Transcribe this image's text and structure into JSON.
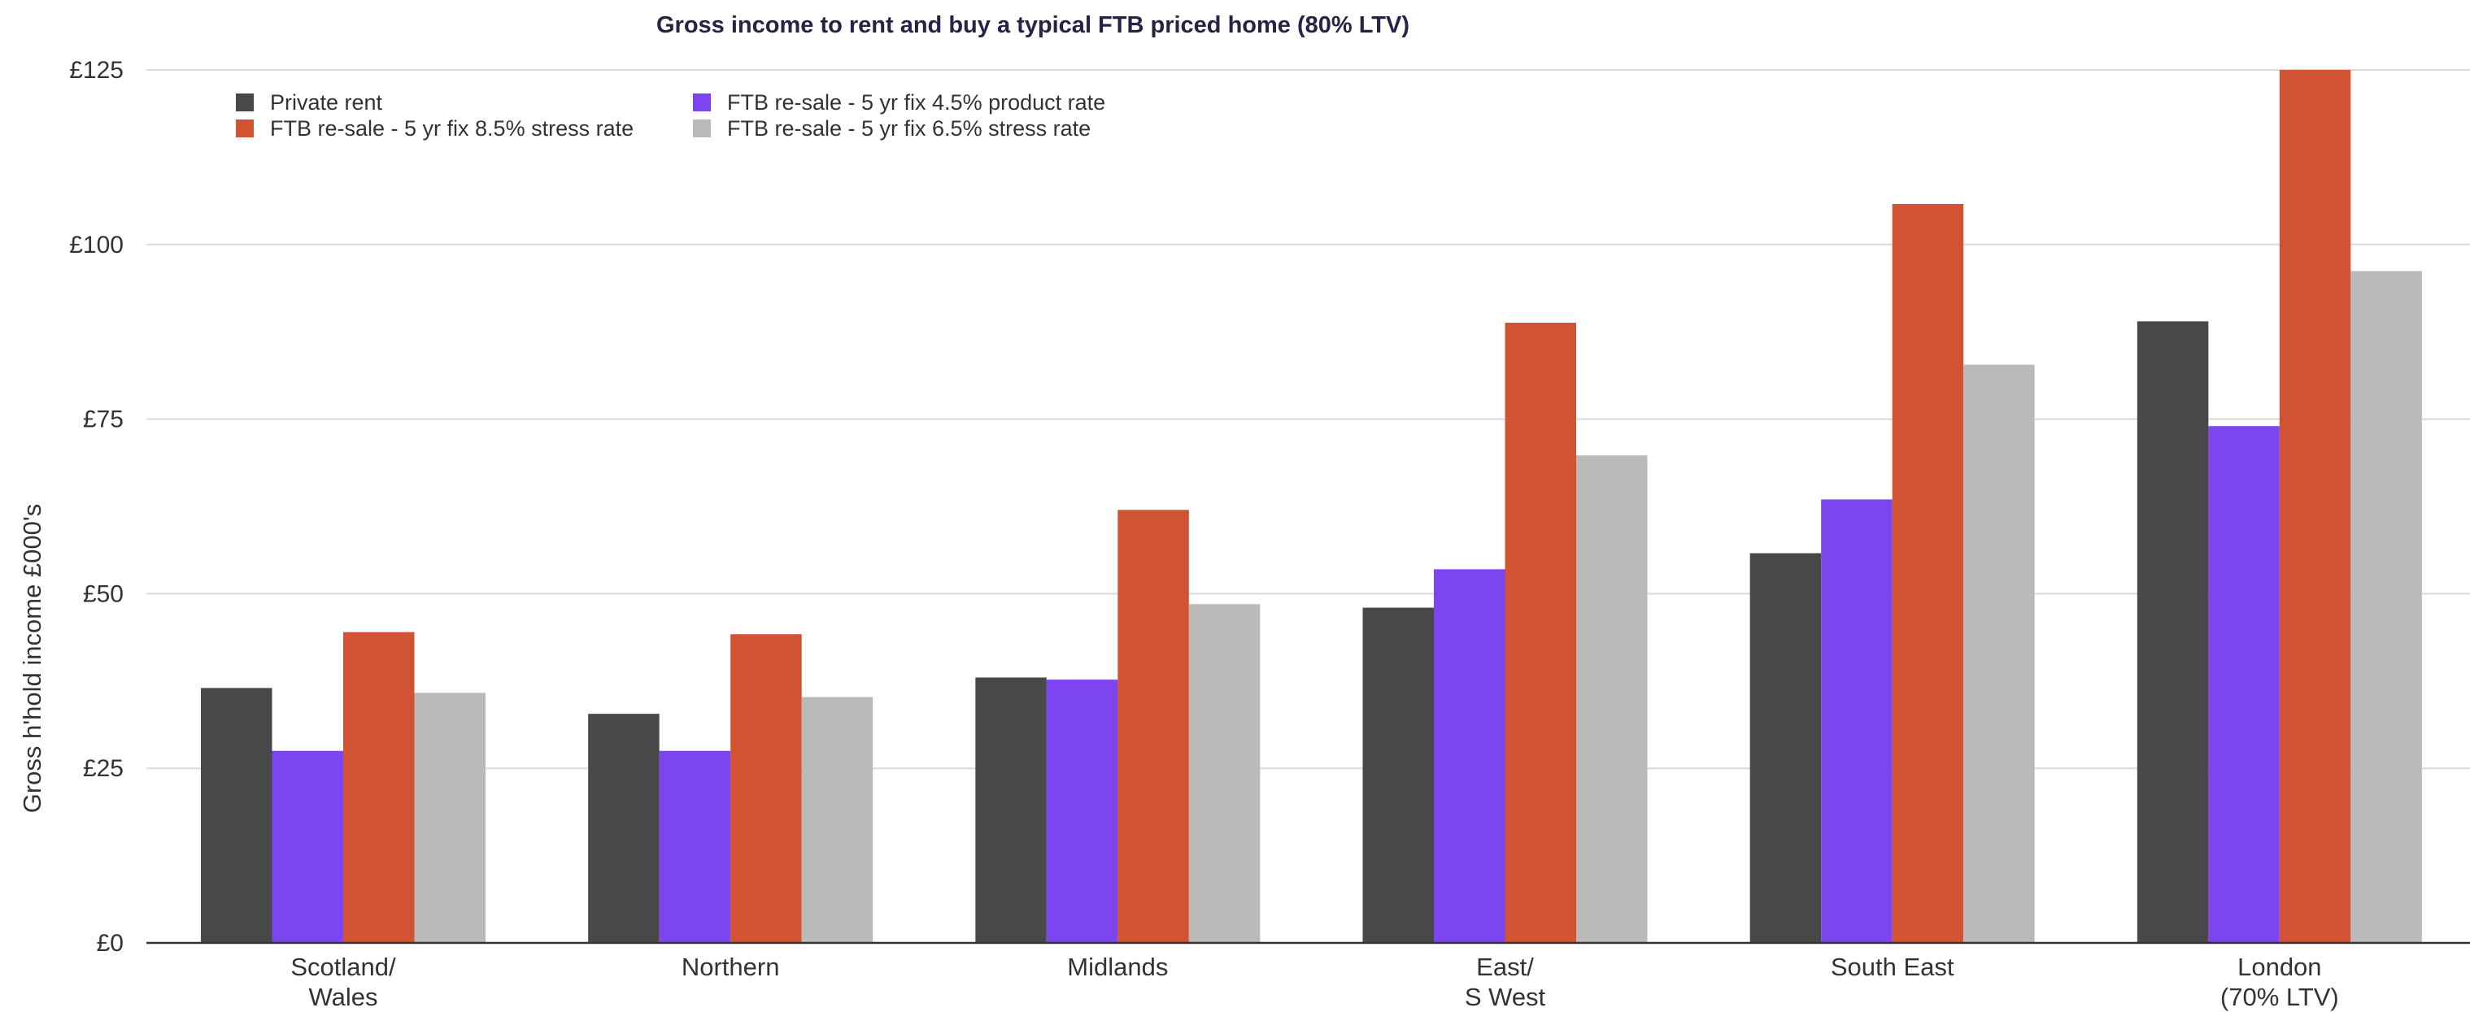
{
  "chart_data": {
    "type": "bar",
    "title": "Gross income to rent and buy a typical FTB priced home (80% LTV)",
    "xlabel": "",
    "ylabel": "Gross h'hold income £000's",
    "ylim": [
      0,
      125
    ],
    "yticks": [
      0,
      25,
      50,
      75,
      100,
      125
    ],
    "ytick_labels": [
      "£0",
      "£25",
      "£50",
      "£75",
      "£100",
      "£125"
    ],
    "categories": [
      [
        "Scotland/",
        "Wales"
      ],
      [
        "Northern"
      ],
      [
        "Midlands"
      ],
      [
        "East/",
        "S West"
      ],
      [
        "South East"
      ],
      [
        "London",
        "(70% LTV)"
      ]
    ],
    "series": [
      {
        "name": "Private rent",
        "color": "#484848",
        "values": [
          36.5,
          32.8,
          38.0,
          48.0,
          55.8,
          89.0
        ]
      },
      {
        "name": "FTB re-sale - 5 yr fix 4.5% product rate",
        "color": "#7c45f0",
        "values": [
          27.5,
          27.5,
          37.7,
          53.5,
          63.5,
          74.0
        ]
      },
      {
        "name": "FTB re-sale - 5 yr fix 8.5% stress rate",
        "color": "#d05334",
        "values": [
          44.5,
          44.2,
          62.0,
          88.8,
          105.8,
          125.0
        ]
      },
      {
        "name": "FTB re-sale - 5 yr fix 6.5% stress rate",
        "color": "#bbbab8",
        "values": [
          35.8,
          35.2,
          48.5,
          69.8,
          82.8,
          96.2
        ]
      }
    ],
    "legend": {
      "placement": "top-left",
      "order": [
        0,
        2,
        1,
        3
      ]
    },
    "grid": true
  }
}
